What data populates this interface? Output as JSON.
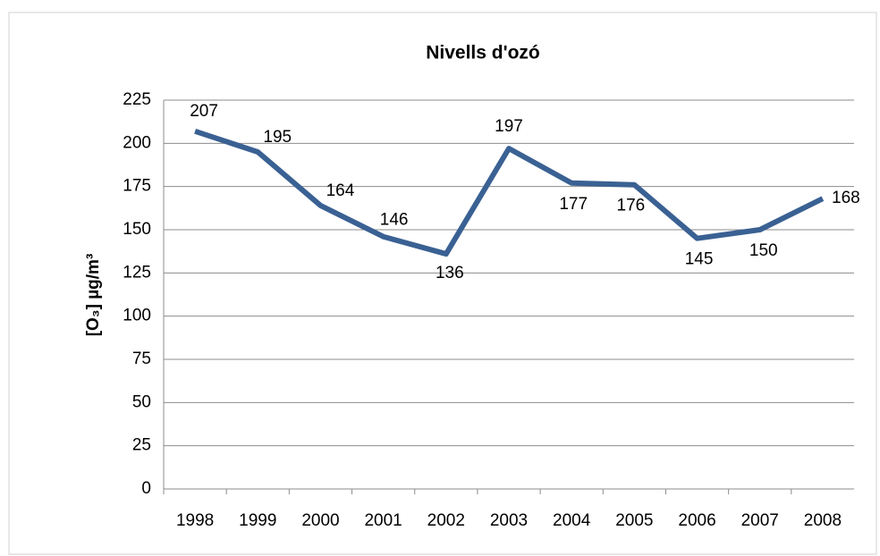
{
  "chart_data": {
    "type": "line",
    "title": "Nivells d'ozó",
    "y_label": "[O₃] µg/m³",
    "categories": [
      "1998",
      "1999",
      "2000",
      "2001",
      "2002",
      "2003",
      "2004",
      "2005",
      "2006",
      "2007",
      "2008"
    ],
    "series": [
      {
        "name": "Nivells d'ozó",
        "color": "#3a6193",
        "values": [
          207,
          195,
          164,
          146,
          136,
          197,
          177,
          176,
          145,
          150,
          168
        ]
      }
    ],
    "ylim": [
      0,
      225
    ],
    "yticks": [
      0,
      25,
      50,
      75,
      100,
      125,
      150,
      175,
      200,
      225
    ],
    "grid": true
  }
}
